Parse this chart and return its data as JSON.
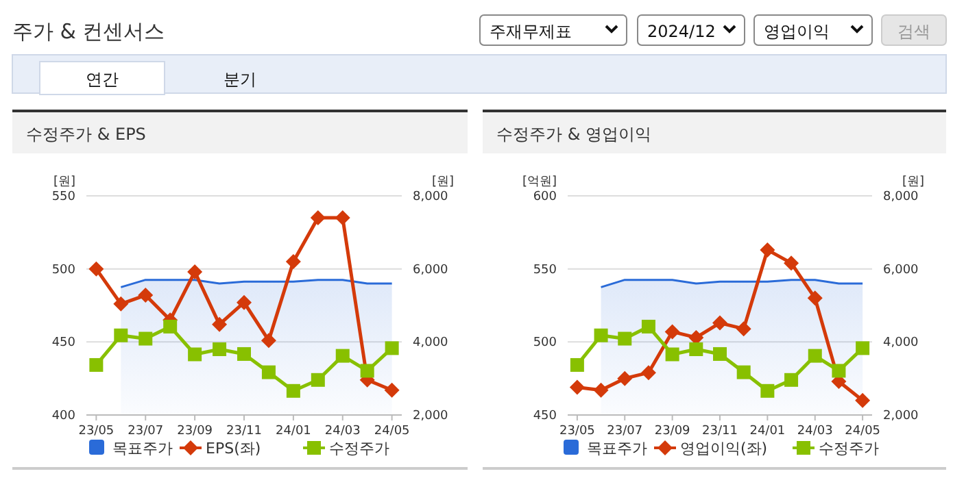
{
  "chart_data": [
    {
      "type": "other",
      "title": "주가 & 컨센서스",
      "annotations": [
        "주재무제표",
        "2024/12",
        "영업이익",
        "검색",
        "연간",
        "분기"
      ]
    },
    {
      "type": "line",
      "title": "수정주가 & EPS",
      "ylabel": "[원]",
      "y2label": "[원]",
      "categories": [
        "23/05",
        null,
        "23/07",
        null,
        "23/09",
        null,
        "23/11",
        null,
        "24/01",
        null,
        "24/03",
        null,
        "24/05"
      ],
      "ylim": [
        400,
        550
      ],
      "yticks": [
        400,
        450,
        500,
        550
      ],
      "y2lim": [
        2000,
        8000
      ],
      "y2ticks": [
        {
          "value": 2000,
          "label": "2,000"
        },
        {
          "value": 4000,
          "label": "4,000"
        },
        {
          "value": 6000,
          "label": "6,000"
        },
        {
          "value": 8000,
          "label": "8,000"
        }
      ],
      "grid": "y",
      "legend": "bottom",
      "series": [
        {
          "name": "목표주가",
          "type": "area",
          "axis": "y2",
          "color": "#2a6bd8",
          "values": [
            null,
            5500,
            5700,
            5700,
            5700,
            5600,
            5650,
            5650,
            5650,
            5700,
            5700,
            5600,
            5600
          ]
        },
        {
          "name": "EPS(좌)",
          "type": "line",
          "axis": "y",
          "color": "#d43a0a",
          "marker": "diamond",
          "values": [
            500,
            476,
            482,
            465,
            498,
            462,
            477,
            451,
            505,
            535,
            535,
            424,
            417
          ]
        },
        {
          "name": "수정주가",
          "type": "line",
          "axis": "y2",
          "color": "#88c000",
          "marker": "square",
          "values": [
            3370,
            4180,
            4090,
            4420,
            3660,
            3800,
            3670,
            3170,
            2660,
            2960,
            3620,
            3210,
            3830
          ]
        }
      ]
    },
    {
      "type": "line",
      "title": "수정주가 & 영업이익",
      "ylabel": "[억원]",
      "y2label": "[원]",
      "categories": [
        "23/05",
        null,
        "23/07",
        null,
        "23/09",
        null,
        "23/11",
        null,
        "24/01",
        null,
        "24/03",
        null,
        "24/05"
      ],
      "ylim": [
        450,
        600
      ],
      "yticks": [
        450,
        500,
        550,
        600
      ],
      "y2lim": [
        2000,
        8000
      ],
      "y2ticks": [
        {
          "value": 2000,
          "label": "2,000"
        },
        {
          "value": 4000,
          "label": "4,000"
        },
        {
          "value": 6000,
          "label": "6,000"
        },
        {
          "value": 8000,
          "label": "8,000"
        }
      ],
      "grid": "y",
      "legend": "bottom",
      "series": [
        {
          "name": "목표주가",
          "type": "area",
          "axis": "y2",
          "color": "#2a6bd8",
          "values": [
            null,
            5500,
            5700,
            5700,
            5700,
            5600,
            5650,
            5650,
            5650,
            5700,
            5700,
            5600,
            5600
          ]
        },
        {
          "name": "영업이익(좌)",
          "type": "line",
          "axis": "y",
          "color": "#d43a0a",
          "marker": "diamond",
          "values": [
            469,
            467,
            475,
            479,
            507,
            503,
            513,
            509,
            563,
            554,
            530,
            473,
            460
          ]
        },
        {
          "name": "수정주가",
          "type": "line",
          "axis": "y2",
          "color": "#88c000",
          "marker": "square",
          "values": [
            3370,
            4180,
            4090,
            4420,
            3660,
            3800,
            3670,
            3170,
            2660,
            2960,
            3620,
            3210,
            3830
          ]
        }
      ]
    }
  ]
}
